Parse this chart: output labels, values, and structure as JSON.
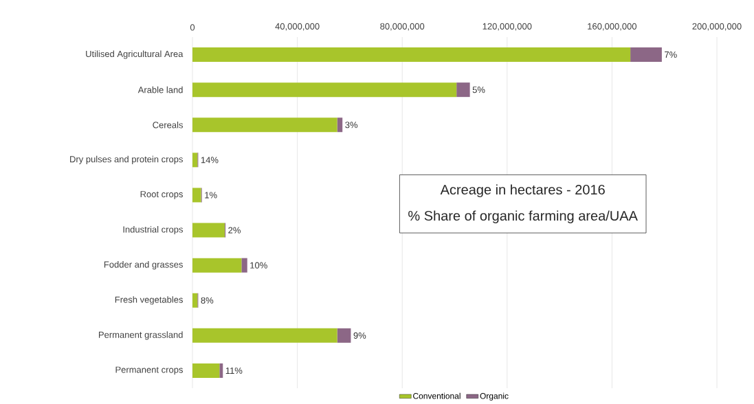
{
  "chart_data": {
    "type": "bar",
    "orientation": "horizontal",
    "stacked": true,
    "categories": [
      "Utilised Agricultural Area",
      "Arable land",
      "Cereals",
      "Dry pulses and protein crops",
      "Root crops",
      "Industrial crops",
      "Fodder and grasses",
      "Fresh vegetables",
      "Permanent grassland",
      "Permanent crops"
    ],
    "series": [
      {
        "name": "Conventional",
        "color": "#a8c52b",
        "values": [
          167000000,
          100700000,
          55200000,
          1900000,
          3300000,
          12300000,
          18700000,
          1900000,
          55200000,
          10300000
        ]
      },
      {
        "name": "Organic",
        "color": "#8c6786",
        "values": [
          12000000,
          5100000,
          2000000,
          300000,
          300000,
          300000,
          2200000,
          300000,
          5200000,
          1300000
        ]
      }
    ],
    "xlim": [
      0,
      200000000
    ],
    "xticks": [
      0,
      {
        "value": 40000000,
        "label": "40,000,000"
      },
      {
        "value": 80000000,
        "label": "80,000,000"
      },
      {
        "value": 120000000,
        "label": "120,000,000"
      },
      {
        "value": 160000000,
        "label": "160,000,000"
      },
      {
        "value": 200000000,
        "label": "200,000,000"
      }
    ],
    "grid": "x",
    "legend": "bottom",
    "annotations": [
      "Acreage in hectares - 2016",
      "% Share of organic farming area/UAA",
      {
        "text": "7%",
        "x": 179000000,
        "y": "Utilised Agricultural Area"
      },
      {
        "text": "5%",
        "x": 105800000,
        "y": "Arable land"
      },
      {
        "text": "3%",
        "x": 57200000,
        "y": "Cereals"
      },
      {
        "text": "14%",
        "x": 2200000,
        "y": "Dry pulses and protein crops"
      },
      {
        "text": "1%",
        "x": 3600000,
        "y": "Root crops"
      },
      {
        "text": "2%",
        "x": 12600000,
        "y": "Industrial crops"
      },
      {
        "text": "10%",
        "x": 20900000,
        "y": "Fodder and grasses"
      },
      {
        "text": "8%",
        "x": 2200000,
        "y": "Fresh vegetables"
      },
      {
        "text": "9%",
        "x": 60400000,
        "y": "Permanent grassland"
      },
      {
        "text": "11%",
        "x": 11600000,
        "y": "Permanent crops"
      }
    ]
  }
}
